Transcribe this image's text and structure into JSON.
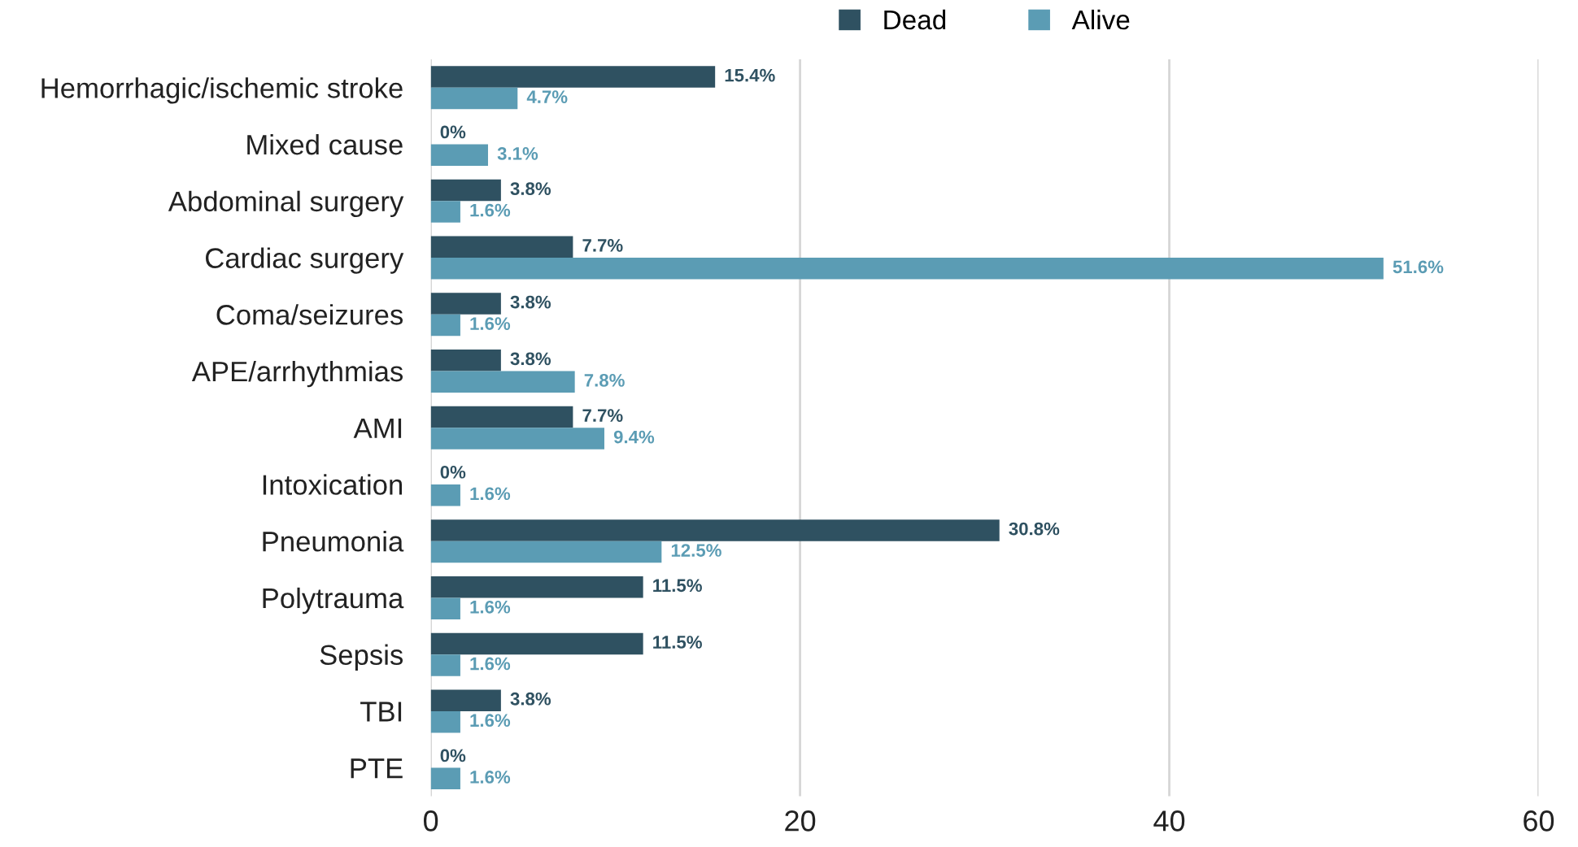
{
  "chart_data": {
    "type": "bar",
    "orientation": "horizontal",
    "categories": [
      "Hemorrhagic/ischemic stroke",
      "Mixed cause",
      "Abdominal surgery",
      "Cardiac surgery",
      "Coma/seizures",
      "APE/arrhythmias",
      "AMI",
      "Intoxication",
      "Pneumonia",
      "Polytrauma",
      "Sepsis",
      "TBI",
      "PTE"
    ],
    "series": [
      {
        "name": "Dead",
        "color": "#2f5161",
        "values": [
          15.4,
          0,
          3.8,
          7.7,
          3.8,
          3.8,
          7.7,
          0,
          30.8,
          11.5,
          11.5,
          3.8,
          0
        ],
        "value_labels": [
          "15.4%",
          "0%",
          "3.8%",
          "7.7%",
          "3.8%",
          "3.8%",
          "7.7%",
          "0%",
          "30.8%",
          "11.5%",
          "11.5%",
          "3.8%",
          "0%"
        ]
      },
      {
        "name": "Alive",
        "color": "#5b9cb4",
        "values": [
          4.7,
          3.1,
          1.6,
          51.6,
          1.6,
          7.8,
          9.4,
          1.6,
          12.5,
          1.6,
          1.6,
          1.6,
          1.6
        ],
        "value_labels": [
          "4.7%",
          "3.1%",
          "1.6%",
          "51.6%",
          "1.6%",
          "7.8%",
          "9.4%",
          "1.6%",
          "12.5%",
          "1.6%",
          "1.6%",
          "1.6%",
          "1.6%"
        ]
      }
    ],
    "xlim": [
      0,
      60
    ],
    "xticks": [
      0,
      20,
      40,
      60
    ],
    "grid": "x",
    "legend": "top"
  }
}
